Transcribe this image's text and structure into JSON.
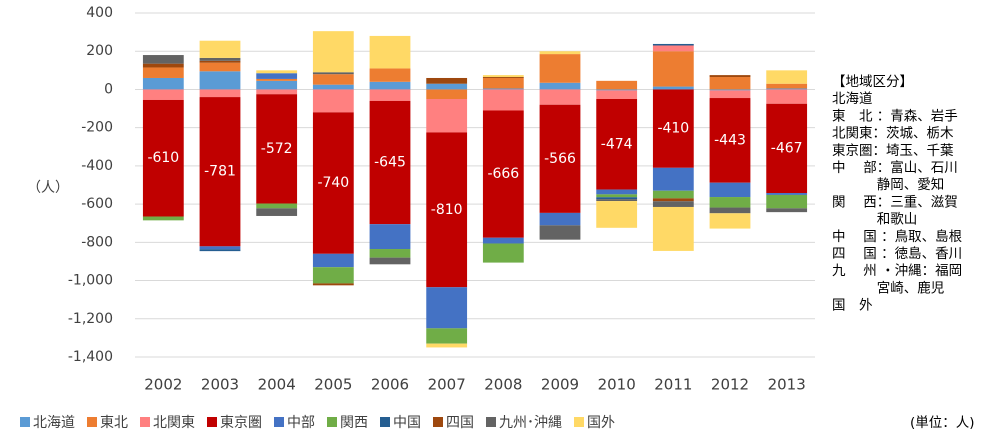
{
  "chart_data": {
    "type": "stacked-bar",
    "y_label": "（人）",
    "unit_note": "(単位：人)",
    "categories": [
      "2002",
      "2003",
      "2004",
      "2005",
      "2006",
      "2007",
      "2008",
      "2009",
      "2010",
      "2011",
      "2012",
      "2013"
    ],
    "ylim": [
      -1400,
      400
    ],
    "yticks": [
      400,
      200,
      0,
      -200,
      -400,
      -600,
      -800,
      {
        "value": -1000,
        "label": "-1,000"
      },
      {
        "value": -1200,
        "label": "-1,200"
      },
      {
        "value": -1400,
        "label": "-1,400"
      }
    ],
    "grid": true,
    "series": [
      {
        "name": "北海道",
        "color": "#5b9bd5",
        "values": [
          60,
          95,
          45,
          25,
          40,
          30,
          5,
          35,
          -5,
          15,
          -5,
          5
        ]
      },
      {
        "name": "東北",
        "color": "#ed7d31",
        "values": [
          55,
          45,
          10,
          55,
          70,
          -50,
          55,
          150,
          45,
          185,
          65,
          25
        ]
      },
      {
        "name": "北関東",
        "color": "#ff8080",
        "values": [
          -55,
          -40,
          -25,
          -120,
          -60,
          -175,
          -110,
          -80,
          -45,
          30,
          -40,
          -75
        ]
      },
      {
        "name": "東京圏",
        "color": "#c00000",
        "values": [
          -610,
          -781,
          -572,
          -740,
          -645,
          -810,
          -666,
          -566,
          -474,
          -410,
          -443,
          -467
        ]
      },
      {
        "name": "中部",
        "color": "#4472c4",
        "values": [
          0,
          -15,
          30,
          -70,
          -130,
          -215,
          -30,
          -65,
          -25,
          -120,
          -75,
          -10
        ]
      },
      {
        "name": "関西",
        "color": "#70ad47",
        "values": [
          -20,
          0,
          -25,
          -85,
          -45,
          -80,
          -100,
          0,
          -15,
          -40,
          -55,
          -70
        ]
      },
      {
        "name": "中国",
        "color": "#255e91",
        "values": [
          0,
          -10,
          0,
          0,
          0,
          0,
          0,
          0,
          -10,
          8,
          0,
          0
        ]
      },
      {
        "name": "四国",
        "color": "#9e480e",
        "values": [
          20,
          10,
          0,
          -10,
          0,
          30,
          5,
          0,
          0,
          -15,
          10,
          0
        ]
      },
      {
        "name": "九州･沖縄",
        "color": "#636363",
        "values": [
          45,
          15,
          -40,
          10,
          -35,
          0,
          0,
          -75,
          -10,
          -30,
          -30,
          -20
        ]
      },
      {
        "name": "国外",
        "color": "#ffd966",
        "values": [
          0,
          90,
          15,
          215,
          170,
          -20,
          10,
          15,
          -140,
          -230,
          -80,
          70
        ]
      }
    ],
    "label_series": 3,
    "region_notes": [
      "【地域区分】",
      "北海道",
      "東　北 ：青森、岩手",
      "北関東：茨城、栃木",
      "東京圏：埼玉、千葉",
      "中　 部：富山、石川",
      "　　　 静岡、愛知",
      "関　 西：三重、滋賀",
      "　　　 和歌山",
      "中　 国 ：鳥取、島根",
      "四　 国 ：徳島、香川",
      "九　 州 ・沖縄：福岡",
      "　　　 宮崎、鹿児",
      "国　外"
    ]
  }
}
